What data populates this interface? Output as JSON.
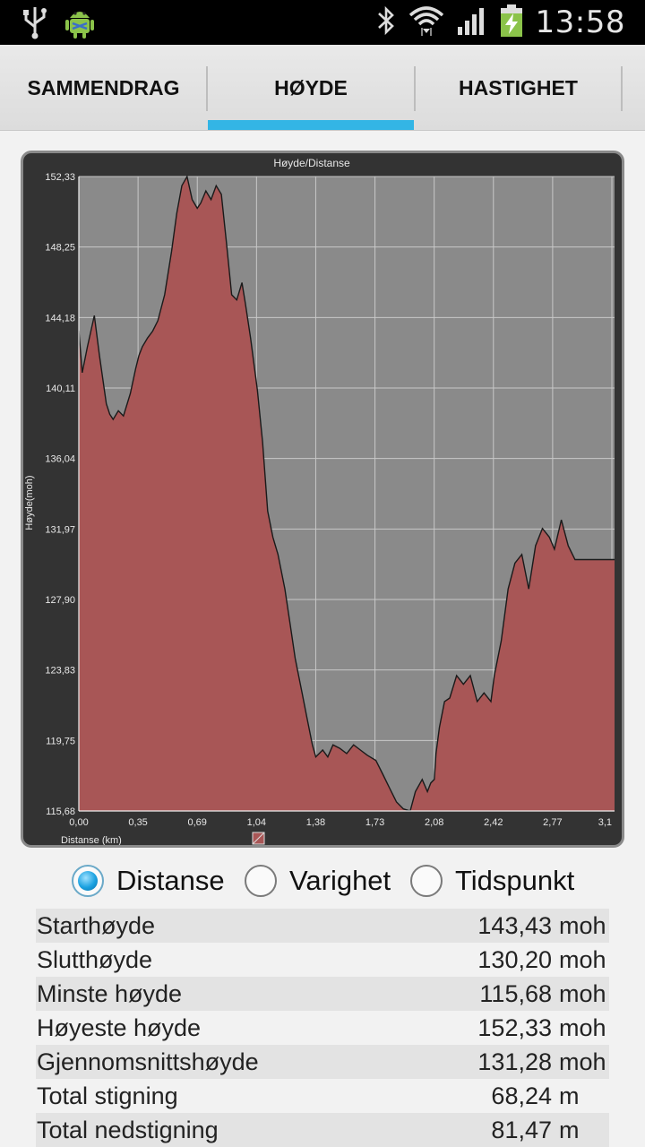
{
  "status_bar": {
    "time": "13:58",
    "left_icons": [
      "usb-icon",
      "android-debug-icon"
    ],
    "right_icons": [
      "bluetooth-icon",
      "wifi-icon",
      "signal-icon",
      "battery-charging-icon"
    ]
  },
  "tabs": [
    {
      "label": "SAMMENDRAG",
      "selected": false
    },
    {
      "label": "HØYDE",
      "selected": true
    },
    {
      "label": "HASTIGHET",
      "selected": false
    }
  ],
  "accent_color": "#33b5e5",
  "chart": {
    "title": "Høyde/Distanse",
    "ylabel": "Høyde(moh)",
    "xlabel": "Distanse (km)",
    "y_ticks": [
      "152,33",
      "148,25",
      "144,18",
      "140,11",
      "136,04",
      "131,97",
      "127,90",
      "123,83",
      "119,75",
      "115,68"
    ],
    "x_ticks": [
      "0,00",
      "0,35",
      "0,69",
      "1,04",
      "1,38",
      "1,73",
      "2,08",
      "2,42",
      "2,77",
      "3,1"
    ]
  },
  "chart_data": {
    "type": "area",
    "title": "Høyde/Distanse",
    "xlabel": "Distanse (km)",
    "ylabel": "Høyde(moh)",
    "xlim": [
      0,
      3.12
    ],
    "ylim": [
      115.68,
      152.33
    ],
    "grid": true,
    "legend": "bottom-center",
    "series": [
      {
        "color": "#a85656",
        "x": [
          0.0,
          0.02,
          0.05,
          0.09,
          0.12,
          0.16,
          0.18,
          0.2,
          0.23,
          0.26,
          0.3,
          0.33,
          0.35,
          0.37,
          0.4,
          0.43,
          0.46,
          0.5,
          0.54,
          0.57,
          0.6,
          0.63,
          0.66,
          0.69,
          0.71,
          0.74,
          0.77,
          0.8,
          0.83,
          0.86,
          0.89,
          0.92,
          0.95,
          0.97,
          1.0,
          1.04,
          1.07,
          1.1,
          1.13,
          1.16,
          1.2,
          1.23,
          1.26,
          1.3,
          1.33,
          1.36,
          1.38,
          1.42,
          1.45,
          1.48,
          1.52,
          1.56,
          1.6,
          1.64,
          1.68,
          1.73,
          1.77,
          1.81,
          1.85,
          1.89,
          1.93,
          1.96,
          2.0,
          2.03,
          2.05,
          2.07,
          2.08,
          2.1,
          2.13,
          2.16,
          2.2,
          2.24,
          2.28,
          2.32,
          2.36,
          2.4,
          2.42,
          2.46,
          2.5,
          2.54,
          2.58,
          2.62,
          2.66,
          2.7,
          2.74,
          2.77,
          2.81,
          2.85,
          2.89,
          2.93,
          2.96,
          3.0,
          3.04,
          3.08,
          3.1,
          3.12
        ],
        "y": [
          143.43,
          141.0,
          142.5,
          144.3,
          142.0,
          139.2,
          138.6,
          138.3,
          138.8,
          138.5,
          139.8,
          141.2,
          142.0,
          142.5,
          143.0,
          143.4,
          144.0,
          145.5,
          148.0,
          150.2,
          151.8,
          152.33,
          151.0,
          150.5,
          150.8,
          151.5,
          151.0,
          151.8,
          151.3,
          148.5,
          145.5,
          145.2,
          146.2,
          145.0,
          143.0,
          140.0,
          137.0,
          133.0,
          131.5,
          130.5,
          128.5,
          126.5,
          124.5,
          122.5,
          121.0,
          119.5,
          118.8,
          119.2,
          118.8,
          119.5,
          119.3,
          119.0,
          119.5,
          119.2,
          118.9,
          118.6,
          117.8,
          117.0,
          116.2,
          115.8,
          115.68,
          116.8,
          117.5,
          116.8,
          117.3,
          117.5,
          119.0,
          120.5,
          122.0,
          122.2,
          123.5,
          123.0,
          123.5,
          122.0,
          122.5,
          122.0,
          123.5,
          125.5,
          128.5,
          130.0,
          130.5,
          128.5,
          131.0,
          132.0,
          131.5,
          130.8,
          132.5,
          131.0,
          130.2,
          130.2,
          130.2,
          130.2,
          130.2,
          130.2,
          130.2,
          130.2
        ]
      }
    ]
  },
  "radios": [
    {
      "label": "Distanse",
      "checked": true
    },
    {
      "label": "Varighet",
      "checked": false
    },
    {
      "label": "Tidspunkt",
      "checked": false
    }
  ],
  "stats": [
    {
      "label": "Starthøyde",
      "value": "143,43",
      "unit": "moh"
    },
    {
      "label": "Slutthøyde",
      "value": "130,20",
      "unit": "moh"
    },
    {
      "label": "Minste høyde",
      "value": "115,68",
      "unit": "moh"
    },
    {
      "label": "Høyeste høyde",
      "value": "152,33",
      "unit": "moh"
    },
    {
      "label": "Gjennomsnittshøyde",
      "value": "131,28",
      "unit": "moh"
    },
    {
      "label": "Total stigning",
      "value": "68,24",
      "unit": "m"
    },
    {
      "label": "Total nedstigning",
      "value": "81,47",
      "unit": "m"
    }
  ]
}
